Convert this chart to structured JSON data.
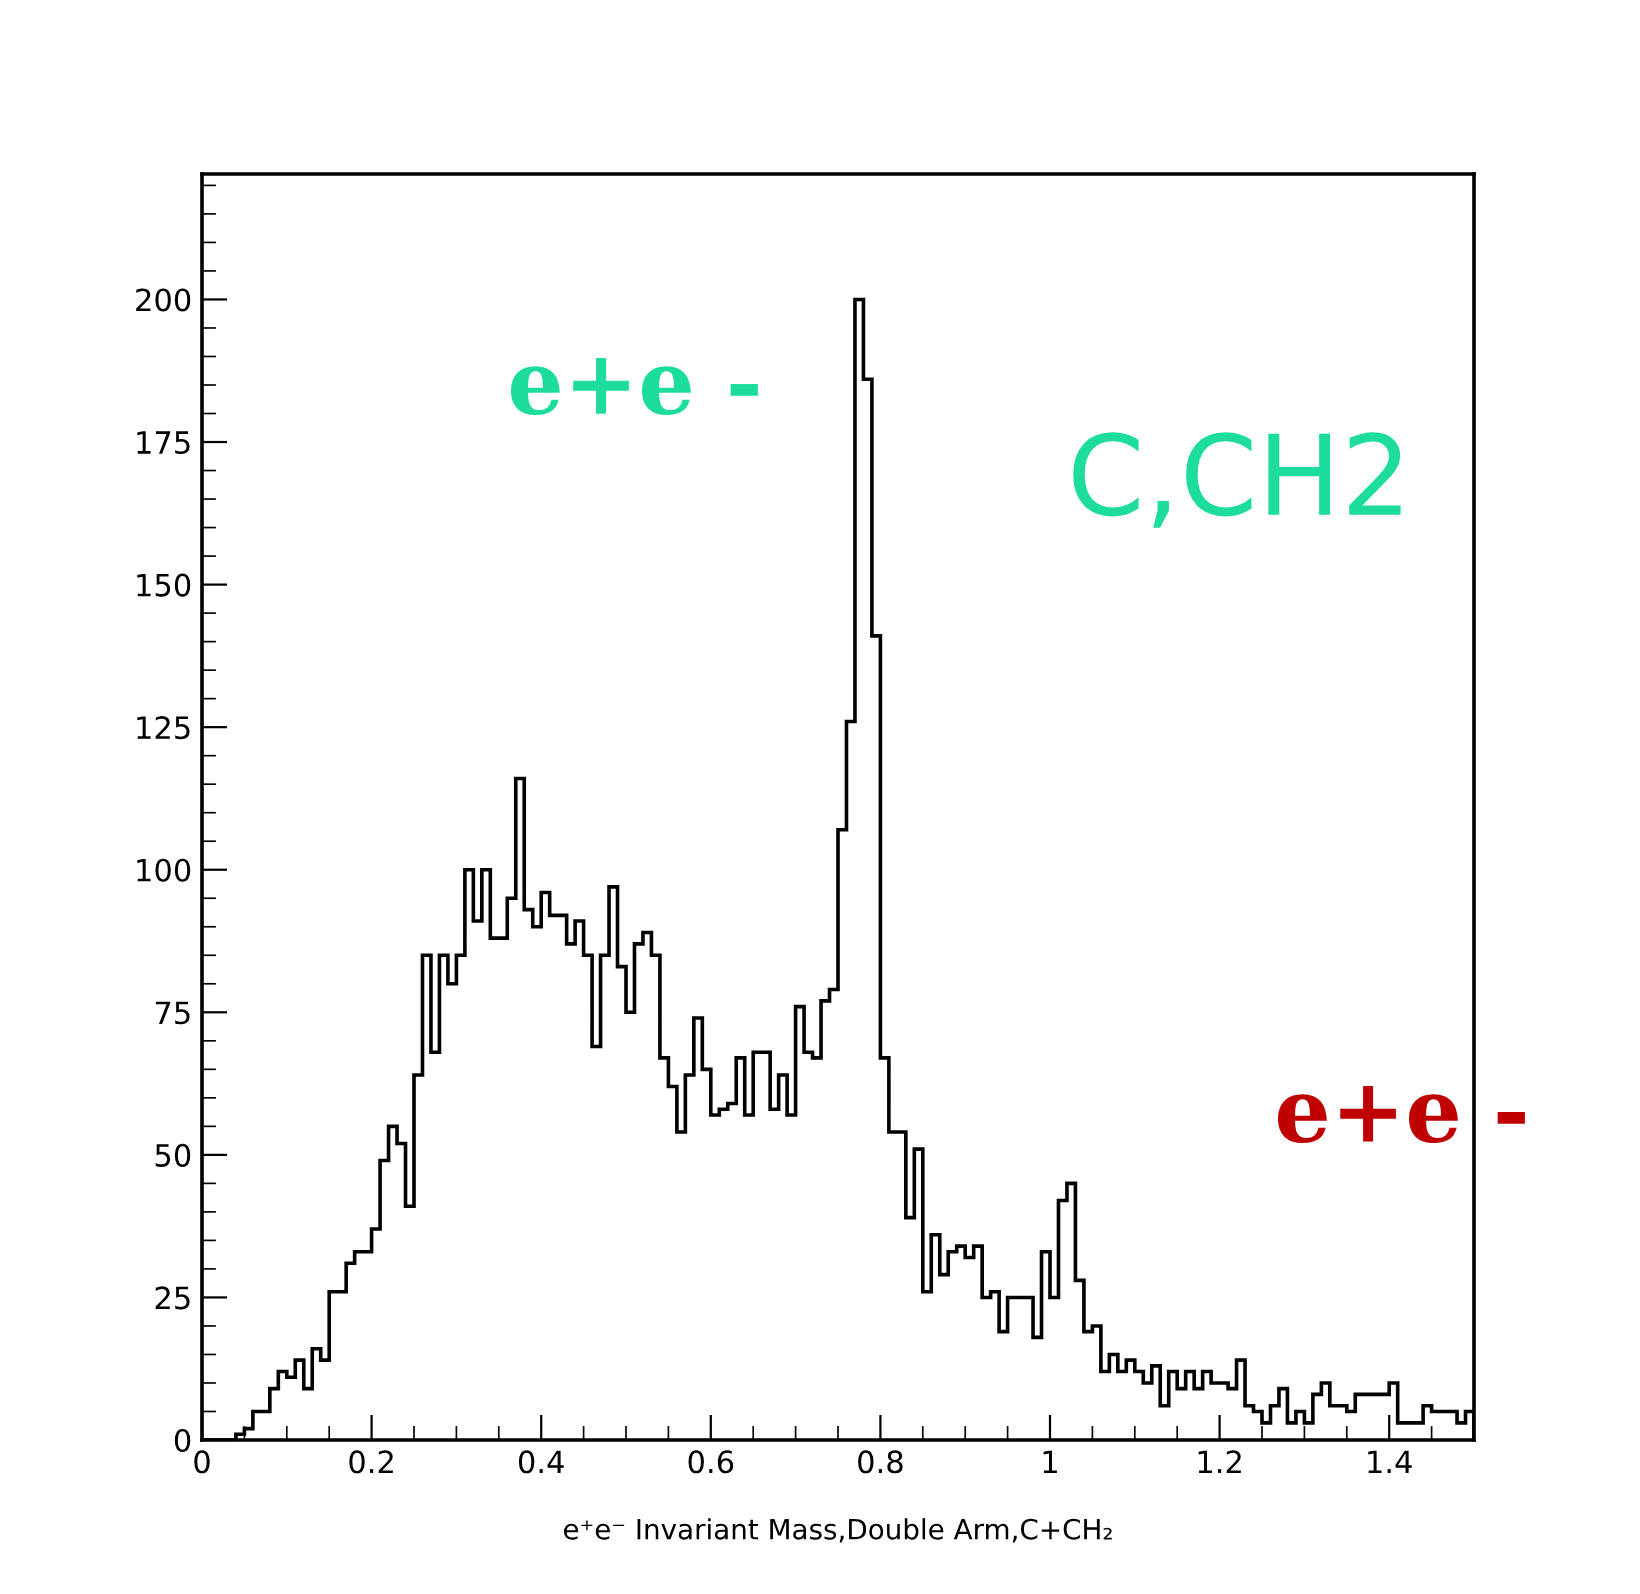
{
  "chart_data": {
    "type": "histogram",
    "xlabel": "e⁺e⁻ Invariant Mass,Double Arm,C+CH₂",
    "annotations": [
      "e+e -",
      "C,CH2",
      "e+e -"
    ],
    "bins": [
      0,
      0.01,
      0.02,
      0.03,
      0.04,
      0.05,
      0.06,
      0.07,
      0.08,
      0.09,
      0.1,
      0.11,
      0.12,
      0.13,
      0.14,
      0.15,
      0.16,
      0.17,
      0.18,
      0.19,
      0.2,
      0.21,
      0.22,
      0.23,
      0.24,
      0.25,
      0.26,
      0.27,
      0.28,
      0.29,
      0.3,
      0.31,
      0.32,
      0.33,
      0.34,
      0.35,
      0.36,
      0.37,
      0.38,
      0.39,
      0.4,
      0.41,
      0.42,
      0.43,
      0.44,
      0.45,
      0.46,
      0.47,
      0.48,
      0.49,
      0.5,
      0.51,
      0.52,
      0.53,
      0.54,
      0.55,
      0.56,
      0.57,
      0.58,
      0.59,
      0.6,
      0.61,
      0.62,
      0.63,
      0.64,
      0.65,
      0.66,
      0.67,
      0.68,
      0.69,
      0.7,
      0.71,
      0.72,
      0.73,
      0.74,
      0.75,
      0.76,
      0.77,
      0.78,
      0.79,
      0.8,
      0.81,
      0.82,
      0.83,
      0.84,
      0.85,
      0.86,
      0.87,
      0.88,
      0.89,
      0.9,
      0.91,
      0.92,
      0.93,
      0.94,
      0.95,
      0.96,
      0.97,
      0.98,
      0.99,
      1.0,
      1.01,
      1.02,
      1.03,
      1.04,
      1.05,
      1.06,
      1.07,
      1.08,
      1.09,
      1.1,
      1.11,
      1.12,
      1.13,
      1.14,
      1.15,
      1.16,
      1.17,
      1.18,
      1.19,
      1.2,
      1.21,
      1.22,
      1.23,
      1.24,
      1.25,
      1.26,
      1.27,
      1.28,
      1.29,
      1.3,
      1.31,
      1.32,
      1.33,
      1.34,
      1.35,
      1.36,
      1.37,
      1.38,
      1.39,
      1.4,
      1.41,
      1.42,
      1.43,
      1.44,
      1.45,
      1.46,
      1.47,
      1.48,
      1.49,
      1.5
    ],
    "values": [
      0,
      0,
      0,
      0,
      1,
      2,
      5,
      5,
      9,
      12,
      11,
      14,
      9,
      16,
      14,
      26,
      26,
      31,
      33,
      33,
      37,
      49,
      55,
      52,
      41,
      64,
      85,
      68,
      85,
      80,
      85,
      100,
      91,
      100,
      88,
      88,
      95,
      116,
      93,
      90,
      96,
      92,
      92,
      87,
      91,
      85,
      69,
      85,
      97,
      83,
      75,
      87,
      89,
      85,
      67,
      62,
      54,
      64,
      74,
      65,
      57,
      58,
      59,
      67,
      57,
      68,
      68,
      58,
      64,
      57,
      76,
      68,
      67,
      77,
      79,
      107,
      126,
      200,
      186,
      141,
      67,
      54,
      54,
      39,
      51,
      26,
      36,
      29,
      33,
      34,
      32,
      34,
      25,
      26,
      19,
      25,
      25,
      25,
      18,
      33,
      25,
      42,
      45,
      28,
      19,
      20,
      12,
      15,
      12,
      14,
      12,
      10,
      13,
      6,
      12,
      9,
      12,
      9,
      12,
      10,
      10,
      9,
      14,
      6,
      5,
      3,
      6,
      9,
      3,
      5,
      3,
      8,
      10,
      6,
      6,
      5,
      8,
      8,
      8,
      8,
      10,
      3,
      3,
      3,
      6,
      5,
      5,
      5,
      3,
      5
    ],
    "color": "#000000",
    "xlim": [
      0,
      1.5
    ],
    "xticks": [
      0,
      0.2,
      0.4,
      0.6,
      0.8,
      1,
      1.2,
      1.4
    ],
    "ylim": [
      0,
      222
    ],
    "yticks": [
      0,
      25,
      50,
      75,
      100,
      125,
      150,
      175,
      200
    ],
    "grid": false
  }
}
